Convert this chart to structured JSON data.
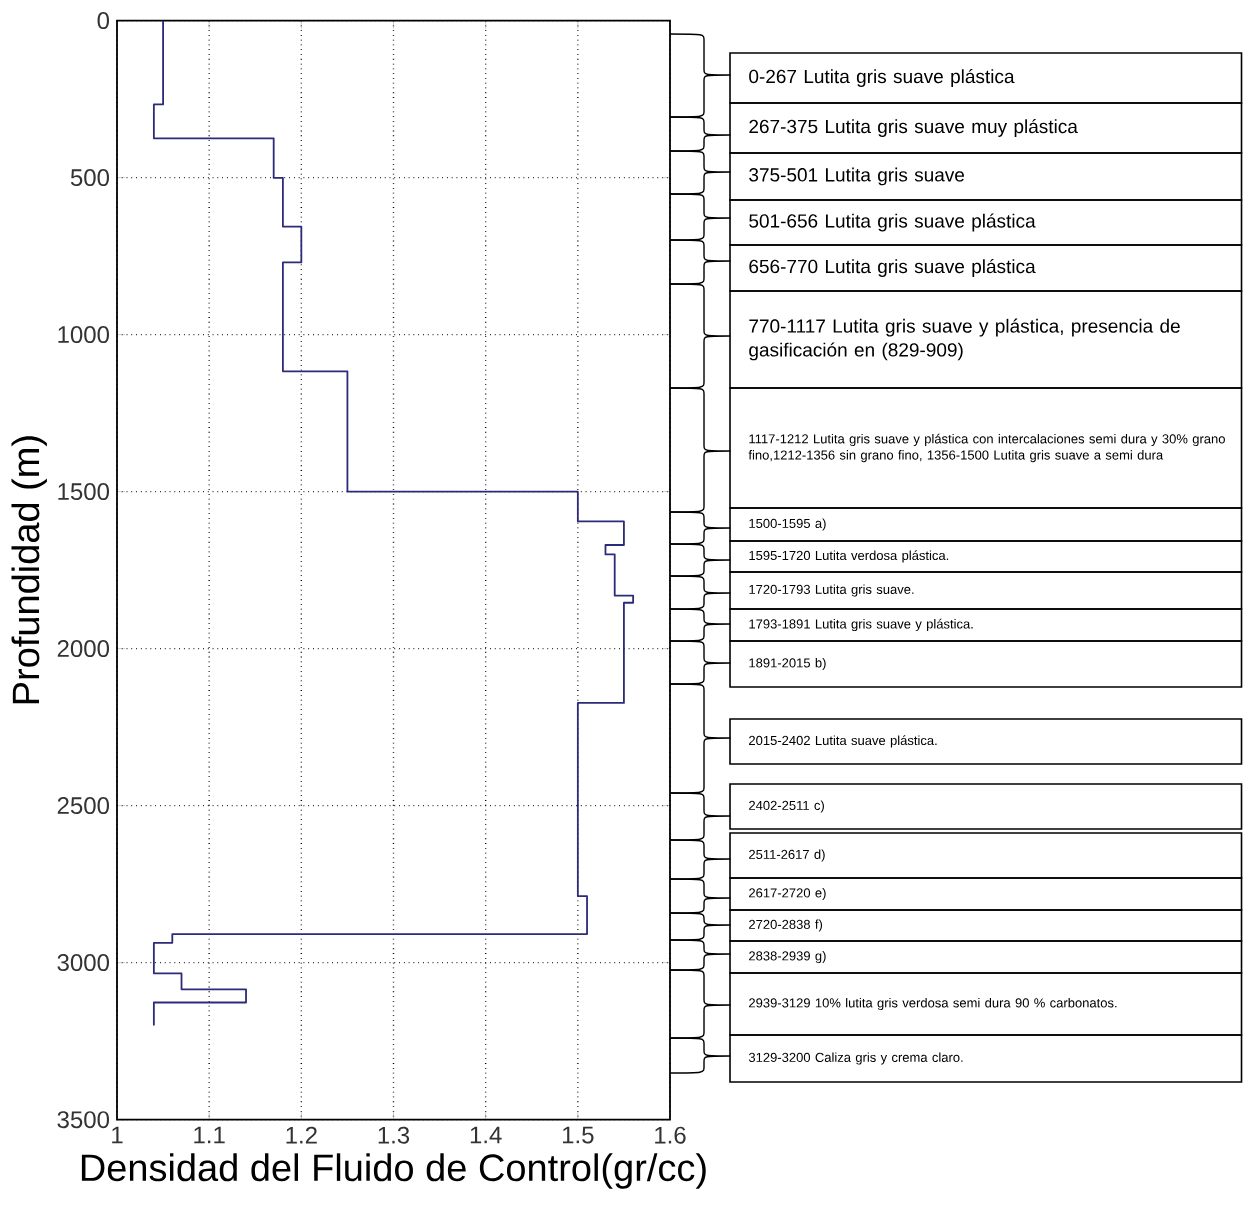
{
  "chart_data": {
    "type": "line",
    "xlabel": "Densidad del Fluido de Control(gr/cc)",
    "ylabel": "Profundidad (m)",
    "xlim": [
      1,
      1.6
    ],
    "xticks": [
      1,
      1.1,
      1.2,
      1.3,
      1.4,
      1.5,
      1.6
    ],
    "ylim": [
      3500,
      0
    ],
    "yticks": [
      0,
      500,
      1000,
      1500,
      2000,
      2500,
      3000,
      3500
    ],
    "grid": true,
    "series": [
      {
        "color": "#2b2b7a",
        "x": [
          1.05,
          1.05,
          1.04,
          1.04,
          1.17,
          1.17,
          1.18,
          1.18,
          1.2,
          1.2,
          1.18,
          1.18,
          1.25,
          1.25,
          1.5,
          1.5,
          1.55,
          1.55,
          1.53,
          1.53,
          1.54,
          1.54,
          1.56,
          1.56,
          1.55,
          1.55,
          1.5,
          1.5,
          1.51,
          1.51,
          1.06,
          1.06,
          1.04,
          1.04,
          1.07,
          1.07,
          1.14,
          1.14,
          1.04,
          1.04
        ],
        "values": [
          0,
          267,
          267,
          375,
          375,
          501,
          501,
          656,
          656,
          770,
          770,
          1117,
          1117,
          1500,
          1500,
          1595,
          1595,
          1670,
          1670,
          1700,
          1700,
          1831,
          1831,
          1854,
          1854,
          2173,
          2173,
          2788,
          2788,
          2909,
          2909,
          2937,
          2937,
          3034,
          3034,
          3085,
          3085,
          3127,
          3127,
          3200
        ]
      }
    ],
    "annotations": [
      "0-267 Lutita gris suave plástica",
      "267-375 Lutita gris suave muy plástica",
      "375-501 Lutita gris suave",
      "501-656 Lutita gris suave plástica",
      "656-770 Lutita gris suave plástica",
      "770-1117 Lutita gris suave y plástica, presencia de gasificación en (829-909)",
      "1117-1212 Lutita gris suave y plástica con intercalaciones semi dura y 30% grano fino,1212-1356 sin grano fino, 1356-1500 Lutita gris suave a semi dura",
      "1500-1595 a)",
      "1595-1720  Lutita verdosa plástica.",
      "1720-1793  Lutita gris suave.",
      "1793-1891  Lutita gris suave y plástica.",
      "1891-2015 b)",
      "2015-2402  Lutita suave plástica.",
      "2402-2511  c)",
      "2511-2617  d)",
      "2617-2720  e)",
      "2720-2838  f)",
      "2838-2939  g)",
      "2939-3129  10% lutita gris verdosa semi dura 90 % carbonatos.",
      "3129-3200  Caliza gris y crema claro."
    ]
  }
}
